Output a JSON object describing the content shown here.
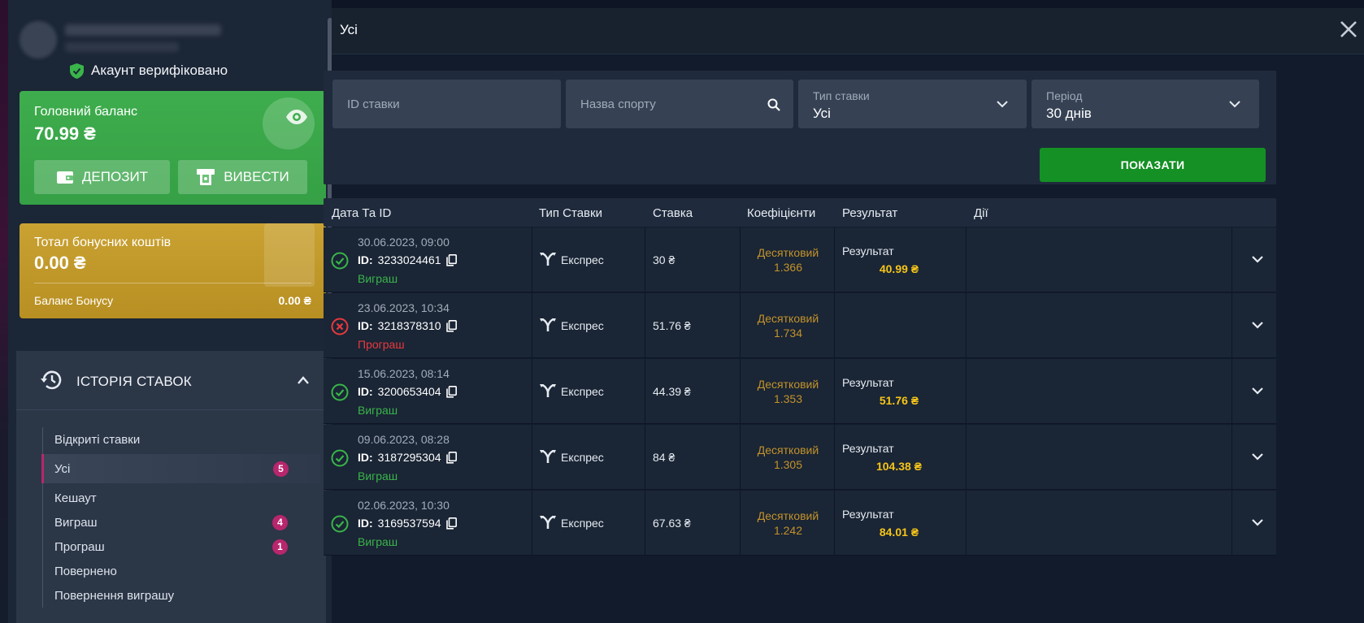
{
  "sidebar": {
    "verified_label": "Акаунт верифіковано",
    "main_balance": {
      "title": "Головний баланс",
      "amount": "70.99 ₴",
      "deposit_label": "ДЕПОЗИТ",
      "withdraw_label": "ВИВЕСТИ"
    },
    "bonus": {
      "title": "Тотал бонусних коштів",
      "amount": "0.00 ₴",
      "sub_label": "Баланс Бонусу",
      "sub_value": "0.00 ₴"
    },
    "history": {
      "title": "ІСТОРІЯ СТАВОК",
      "items": [
        {
          "label": "Відкриті ставки",
          "badge": ""
        },
        {
          "label": "Усі",
          "badge": "5"
        },
        {
          "label": "Кешаут",
          "badge": ""
        },
        {
          "label": "Виграш",
          "badge": "4"
        },
        {
          "label": "Програш",
          "badge": "1"
        },
        {
          "label": "Повернено",
          "badge": ""
        },
        {
          "label": "Повернення виграшу",
          "badge": ""
        }
      ]
    }
  },
  "modal": {
    "title": "Усі",
    "filters": {
      "bet_id_placeholder": "ID ставки",
      "sport_placeholder": "Назва спорту",
      "bet_type_label": "Тип ставки",
      "bet_type_value": "Усі",
      "period_label": "Період",
      "period_value": "30 днів",
      "show_label": "ПОКАЗАТИ"
    },
    "table": {
      "headers": {
        "date": "Дата Та ID",
        "type": "Тип Ставки",
        "stake": "Ставка",
        "odds": "Коефіцієнти",
        "result": "Результат",
        "actions": "Дії"
      },
      "rows": [
        {
          "date": "30.06.2023, 09:00",
          "id_prefix": "ID:",
          "id": "3233024461",
          "status": "Виграш",
          "status_type": "win",
          "type": "Експрес",
          "stake": "30 ₴",
          "odds_label": "Десятковий",
          "odds": "1.366",
          "result_label": "Результат",
          "result_value": "40.99 ₴"
        },
        {
          "date": "23.06.2023, 10:34",
          "id_prefix": "ID:",
          "id": "3218378310",
          "status": "Програш",
          "status_type": "lose",
          "type": "Експрес",
          "stake": "51.76 ₴",
          "odds_label": "Десятковий",
          "odds": "1.734",
          "result_label": "",
          "result_value": ""
        },
        {
          "date": "15.06.2023, 08:14",
          "id_prefix": "ID:",
          "id": "3200653404",
          "status": "Виграш",
          "status_type": "win",
          "type": "Експрес",
          "stake": "44.39 ₴",
          "odds_label": "Десятковий",
          "odds": "1.353",
          "result_label": "Результат",
          "result_value": "51.76 ₴"
        },
        {
          "date": "09.06.2023, 08:28",
          "id_prefix": "ID:",
          "id": "3187295304",
          "status": "Виграш",
          "status_type": "win",
          "type": "Експрес",
          "stake": "84 ₴",
          "odds_label": "Десятковий",
          "odds": "1.305",
          "result_label": "Результат",
          "result_value": "104.38 ₴"
        },
        {
          "date": "02.06.2023, 10:30",
          "id_prefix": "ID:",
          "id": "3169537594",
          "status": "Виграш",
          "status_type": "win",
          "type": "Експрес",
          "stake": "67.63 ₴",
          "odds_label": "Десятковий",
          "odds": "1.242",
          "result_label": "Результат",
          "result_value": "84.01 ₴"
        }
      ]
    }
  },
  "colors": {
    "win": "#3ab54a",
    "lose": "#e8393e",
    "accent_pink": "#b8266d",
    "gold": "#f5c518"
  }
}
